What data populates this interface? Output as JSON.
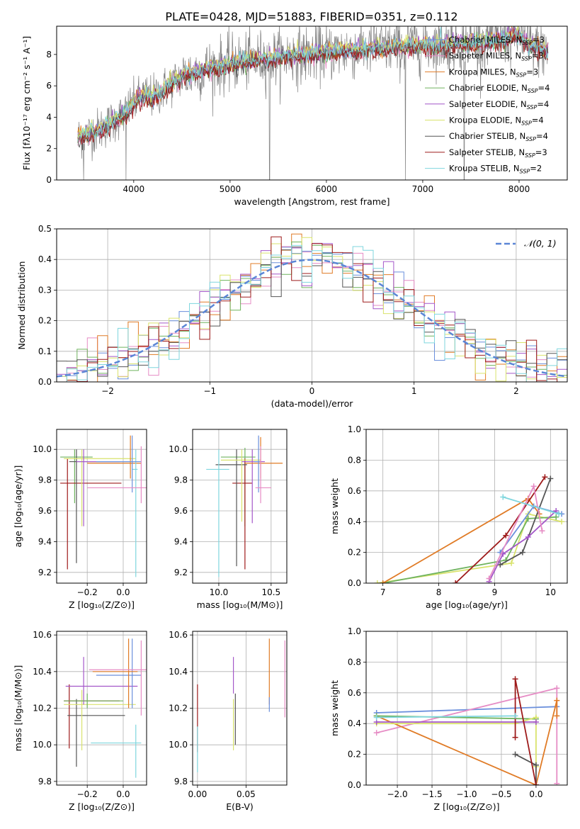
{
  "figure_title": "PLATE=0428, MJD=51883, FIBERID=0351, z=0.112",
  "colors": {
    "chabrier_miles": "#6a8fdc",
    "salpeter_miles": "#e68cc5",
    "kroupa_miles": "#e07b26",
    "chabrier_elodie": "#6fb35f",
    "salpeter_elodie": "#a457c9",
    "kroupa_elodie": "#d9e36c",
    "chabrier_stelib": "#555555",
    "salpeter_stelib": "#9e1b1b",
    "kroupa_stelib": "#7fd6de",
    "data": "#808080"
  },
  "chart_data": [
    {
      "id": "spectrum",
      "type": "line",
      "xlabel": "wavelength [Angstrom, rest frame]",
      "ylabel": "Flux [fλ10⁻¹⁷ erg cm⁻² s⁻¹ A⁻¹]",
      "xlim": [
        3200,
        8500
      ],
      "ylim": [
        0,
        9.8
      ],
      "xticks": [
        "4000",
        "5000",
        "6000",
        "7000",
        "8000"
      ],
      "yticks": [
        "0",
        "2",
        "4",
        "6",
        "8"
      ],
      "grid": false,
      "legend_position": "top-right",
      "legend": [
        "Chabrier MILES, N_SSP=3",
        "Salpeter MILES, N_SSP=3",
        "Kroupa MILES, N_SSP=3",
        "Chabrier ELODIE, N_SSP=4",
        "Salpeter ELODIE, N_SSP=4",
        "Kroupa ELODIE, N_SSP=4",
        "Chabrier STELIB, N_SSP=4",
        "Salpeter STELIB, N_SSP=3",
        "Kroupa STELIB, N_SSP=2"
      ],
      "continuum": {
        "x": [
          3420,
          3500,
          3600,
          3700,
          3800,
          3900,
          4000,
          4100,
          4200,
          4300,
          4400,
          4500,
          4700,
          4900,
          5100,
          5300,
          5500,
          5800,
          6100,
          6400,
          6700,
          7000,
          7300,
          7600,
          7800,
          8000,
          8100,
          8300
        ],
        "y": [
          2.7,
          2.9,
          3.1,
          3.4,
          3.8,
          4.2,
          4.9,
          5.4,
          5.3,
          5.7,
          6.2,
          6.6,
          7.0,
          7.3,
          7.5,
          7.7,
          7.85,
          8.0,
          8.2,
          8.35,
          8.5,
          8.6,
          8.7,
          8.8,
          8.9,
          9.3,
          8.6,
          8.2
        ]
      },
      "model_offsets": [
        0.0,
        -0.1,
        0.05,
        -0.05,
        0.1,
        0.12,
        -0.15,
        -0.25,
        0.02
      ],
      "data_noise_amplitude": 1.0,
      "dips": [
        {
          "x": 3480,
          "to": 0.0
        },
        {
          "x": 3920,
          "to": 0.0
        },
        {
          "x": 5410,
          "to": 0.0
        },
        {
          "x": 6820,
          "to": 0.0
        },
        {
          "x": 7430,
          "to": 0.0
        }
      ]
    },
    {
      "id": "residuals",
      "type": "step",
      "xlabel": "(data-model)/error",
      "ylabel": "Normed distribution",
      "xlim": [
        -2.5,
        2.5
      ],
      "ylim": [
        0,
        0.5
      ],
      "xticks": [
        "−2",
        "−1",
        "0",
        "1",
        "2"
      ],
      "yticks": [
        "0.0",
        "0.1",
        "0.2",
        "0.3",
        "0.4",
        "0.5"
      ],
      "grid": true,
      "legend_position": "top-right",
      "legend": [
        "𝒩(0, 1)"
      ],
      "gaussian": {
        "mean": 0,
        "sigma": 1
      },
      "bin_width": 0.1,
      "model_noise": 0.04
    },
    {
      "id": "age_vs_Z",
      "type": "errorbar",
      "xlabel": "Z [log₁₀(Z/Z⊙)]",
      "ylabel": "age  [log₁₀(age/yr)]",
      "xlim": [
        -0.37,
        0.13
      ],
      "ylim": [
        9.13,
        10.13
      ],
      "xticks": [
        "−0.2",
        "0.0"
      ],
      "xtick_values": [
        -0.2,
        0.0
      ],
      "ytick_values": [
        9.2,
        9.4,
        9.6,
        9.8,
        10.0
      ],
      "yticks": [
        "9.2",
        "9.4",
        "9.6",
        "9.8",
        "10.0"
      ],
      "grid": true,
      "points": [
        {
          "x": -0.27,
          "y": 9.95,
          "xerr": [
            0.08,
            0.1
          ],
          "yerr": [
            0.3,
            0.05
          ],
          "c": "chabrier_elodie"
        },
        {
          "x": -0.31,
          "y": 9.78,
          "xerr": [
            0.04,
            0.3
          ],
          "yerr": [
            0.56,
            0.16
          ],
          "c": "salpeter_stelib"
        },
        {
          "x": -0.26,
          "y": 9.92,
          "xerr": [
            0.04,
            0.3
          ],
          "yerr": [
            0.66,
            0.08
          ],
          "c": "chabrier_stelib"
        },
        {
          "x": -0.23,
          "y": 9.94,
          "xerr": [
            0.1,
            0.3
          ],
          "yerr": [
            0.44,
            0.06
          ],
          "c": "kroupa_elodie"
        },
        {
          "x": -0.22,
          "y": 9.92,
          "xerr": [
            0.04,
            0.2
          ],
          "yerr": [
            0.42,
            0.08
          ],
          "c": "salpeter_elodie"
        },
        {
          "x": 0.04,
          "y": 9.91,
          "xerr": [
            0.24,
            0.06
          ],
          "yerr": [
            0.1,
            0.18
          ],
          "c": "kroupa_miles"
        },
        {
          "x": 0.07,
          "y": 9.87,
          "xerr": [
            0.02,
            0.01
          ],
          "yerr": [
            0.7,
            0.13
          ],
          "c": "kroupa_stelib"
        },
        {
          "x": 0.05,
          "y": 9.92,
          "xerr": [
            0.2,
            0.05
          ],
          "yerr": [
            0.2,
            0.17
          ],
          "c": "chabrier_miles"
        },
        {
          "x": 0.1,
          "y": 9.75,
          "xerr": [
            0.3,
            0.03
          ],
          "yerr": [
            0.1,
            0.27
          ],
          "c": "salpeter_miles"
        }
      ]
    },
    {
      "id": "age_vs_mass",
      "type": "errorbar",
      "xlabel": "mass [log₁₀(M/M⊙)]",
      "ylabel": "",
      "xlim": [
        9.75,
        10.65
      ],
      "ylim": [
        9.13,
        10.13
      ],
      "xticks": [
        "10.0",
        "10.5"
      ],
      "xtick_values": [
        10.0,
        10.5
      ],
      "ytick_values": [
        9.2,
        9.4,
        9.6,
        9.8,
        10.0
      ],
      "yticks": [
        "9.2",
        "9.4",
        "9.6",
        "9.8",
        "10.0"
      ],
      "grid": true,
      "points": [
        {
          "x": 10.25,
          "y": 9.95,
          "xerr": [
            0.23,
            0.1
          ],
          "yerr": [
            0.45,
            0.06
          ],
          "c": "chabrier_elodie"
        },
        {
          "x": 10.25,
          "y": 9.78,
          "xerr": [
            0.12,
            0.07
          ],
          "yerr": [
            0.56,
            0.16
          ],
          "c": "salpeter_stelib"
        },
        {
          "x": 10.17,
          "y": 9.9,
          "xerr": [
            0.2,
            0.1
          ],
          "yerr": [
            0.66,
            0.1
          ],
          "c": "chabrier_stelib"
        },
        {
          "x": 10.22,
          "y": 9.93,
          "xerr": [
            0.2,
            0.18
          ],
          "yerr": [
            0.4,
            0.07
          ],
          "c": "kroupa_elodie"
        },
        {
          "x": 10.32,
          "y": 9.92,
          "xerr": [
            0.1,
            0.12
          ],
          "yerr": [
            0.4,
            0.08
          ],
          "c": "salpeter_elodie"
        },
        {
          "x": 10.4,
          "y": 9.91,
          "xerr": [
            0.15,
            0.21
          ],
          "yerr": [
            0.1,
            0.17
          ],
          "c": "kroupa_miles"
        },
        {
          "x": 10.0,
          "y": 9.87,
          "xerr": [
            0.12,
            0.1
          ],
          "yerr": [
            0.7,
            0.13
          ],
          "c": "kroupa_stelib"
        },
        {
          "x": 10.38,
          "y": 9.92,
          "xerr": [
            0.04,
            0.01
          ],
          "yerr": [
            0.2,
            0.17
          ],
          "c": "chabrier_miles"
        },
        {
          "x": 10.4,
          "y": 9.75,
          "xerr": [
            0.05,
            0.1
          ],
          "yerr": [
            0.1,
            0.27
          ],
          "c": "salpeter_miles"
        }
      ]
    },
    {
      "id": "weight_vs_age",
      "type": "line",
      "xlabel": "age  [log₁₀(age/yr)]",
      "ylabel": "mass weight",
      "xlim": [
        6.7,
        10.3
      ],
      "ylim": [
        0,
        1.0
      ],
      "xticks": [
        "7",
        "8",
        "9",
        "10"
      ],
      "xtick_values": [
        7,
        8,
        9,
        10
      ],
      "ytick_values": [
        0,
        0.2,
        0.4,
        0.6,
        0.8,
        1.0
      ],
      "yticks": [
        "0.0",
        "0.2",
        "0.4",
        "0.6",
        "0.8",
        "1.0"
      ],
      "grid": true,
      "series": [
        {
          "c": "kroupa_elodie",
          "x": [
            6.9,
            9.3,
            9.6,
            10.2
          ],
          "y": [
            0.0,
            0.13,
            0.45,
            0.4
          ]
        },
        {
          "c": "chabrier_elodie",
          "x": [
            7.0,
            9.2,
            9.6,
            10.1
          ],
          "y": [
            0.0,
            0.15,
            0.42,
            0.43
          ]
        },
        {
          "c": "kroupa_miles",
          "x": [
            7.0,
            9.6,
            9.8
          ],
          "y": [
            0.0,
            0.55,
            0.45
          ]
        },
        {
          "c": "chabrier_stelib",
          "x": [
            9.1,
            9.5,
            10.0
          ],
          "y": [
            0.12,
            0.2,
            0.68
          ]
        },
        {
          "c": "salpeter_stelib",
          "x": [
            8.3,
            9.2,
            9.9
          ],
          "y": [
            0.0,
            0.31,
            0.69
          ]
        },
        {
          "c": "chabrier_miles",
          "x": [
            9.1,
            9.7,
            10.2
          ],
          "y": [
            0.2,
            0.5,
            0.45
          ]
        },
        {
          "c": "salpeter_elodie",
          "x": [
            8.9,
            9.15,
            9.6,
            10.1
          ],
          "y": [
            0.01,
            0.19,
            0.3,
            0.47
          ]
        },
        {
          "c": "salpeter_miles",
          "x": [
            8.9,
            9.7,
            9.85
          ],
          "y": [
            0.03,
            0.63,
            0.34
          ]
        },
        {
          "c": "kroupa_stelib",
          "x": [
            9.15,
            10.15
          ],
          "y": [
            0.56,
            0.45
          ]
        }
      ]
    },
    {
      "id": "mass_vs_Z",
      "type": "errorbar",
      "xlabel": "Z [log₁₀(Z/Z⊙)]",
      "ylabel": "mass [log₁₀(M/M⊙)]",
      "xlim": [
        -0.37,
        0.13
      ],
      "ylim": [
        9.78,
        10.62
      ],
      "xticks": [
        "−0.2",
        "0.0"
      ],
      "xtick_values": [
        -0.2,
        0.0
      ],
      "ytick_values": [
        9.8,
        10.0,
        10.2,
        10.4,
        10.6
      ],
      "yticks": [
        "9.8",
        "10.0",
        "10.2",
        "10.4",
        "10.6"
      ],
      "grid": true,
      "points": [
        {
          "x": -0.3,
          "y": 10.24,
          "xerr": [
            0.03,
            0.28
          ],
          "yerr": [
            0.26,
            0.09
          ],
          "c": "salpeter_stelib"
        },
        {
          "x": -0.26,
          "y": 10.16,
          "xerr": [
            0.05,
            0.27
          ],
          "yerr": [
            0.28,
            0.09
          ],
          "c": "chabrier_stelib"
        },
        {
          "x": -0.23,
          "y": 10.22,
          "xerr": [
            0.1,
            0.3
          ],
          "yerr": [
            0.25,
            0.08
          ],
          "c": "kroupa_elodie"
        },
        {
          "x": -0.22,
          "y": 10.32,
          "xerr": [
            0.1,
            0.3
          ],
          "yerr": [
            0.1,
            0.16
          ],
          "c": "salpeter_elodie"
        },
        {
          "x": -0.2,
          "y": 10.24,
          "xerr": [
            0.13,
            0.2
          ],
          "yerr": [
            0.04,
            0.04
          ],
          "c": "chabrier_elodie"
        },
        {
          "x": 0.05,
          "y": 10.38,
          "xerr": [
            0.2,
            0.05
          ],
          "yerr": [
            0.18,
            0.2
          ],
          "c": "chabrier_miles"
        },
        {
          "x": 0.07,
          "y": 10.01,
          "xerr": [
            0.25,
            0.03
          ],
          "yerr": [
            0.19,
            0.1
          ],
          "c": "kroupa_stelib"
        },
        {
          "x": 0.03,
          "y": 10.4,
          "xerr": [
            0.2,
            0.05
          ],
          "yerr": [
            0.2,
            0.18
          ],
          "c": "kroupa_miles"
        },
        {
          "x": 0.1,
          "y": 10.41,
          "xerr": [
            0.29,
            0.03
          ],
          "yerr": [
            0.25,
            0.16
          ],
          "c": "salpeter_miles"
        }
      ]
    },
    {
      "id": "mass_vs_ebv",
      "type": "errorbar",
      "xlabel": "E(B-V)",
      "ylabel": "",
      "xlim": [
        -0.005,
        0.092
      ],
      "ylim": [
        9.78,
        10.62
      ],
      "xticks": [
        "0.00",
        "0.05"
      ],
      "xtick_values": [
        0.0,
        0.05
      ],
      "ytick_values": [
        9.8,
        10.0,
        10.2,
        10.4,
        10.6
      ],
      "yticks": [
        "9.8",
        "10.0",
        "10.2",
        "10.4",
        "10.6"
      ],
      "grid": true,
      "points": [
        {
          "x": 0.0,
          "y": 10.18,
          "xerr": [
            0,
            0
          ],
          "yerr": [
            0.22,
            0.15
          ],
          "c": "salpeter_stelib"
        },
        {
          "x": 0.0,
          "y": 10.0,
          "xerr": [
            0,
            0
          ],
          "yerr": [
            0.15,
            0.1
          ],
          "c": "kroupa_stelib"
        },
        {
          "x": 0.037,
          "y": 10.38,
          "xerr": [
            0,
            0
          ],
          "yerr": [
            0.1,
            0.1
          ],
          "c": "salpeter_elodie"
        },
        {
          "x": 0.037,
          "y": 10.15,
          "xerr": [
            0,
            0
          ],
          "yerr": [
            0.18,
            0.1
          ],
          "c": "kroupa_elodie"
        },
        {
          "x": 0.039,
          "y": 10.18,
          "xerr": [
            0,
            0
          ],
          "yerr": [
            0.18,
            0.1
          ],
          "c": "chabrier_stelib"
        },
        {
          "x": 0.074,
          "y": 10.4,
          "xerr": [
            0,
            0
          ],
          "yerr": [
            0.18,
            0.18
          ],
          "c": "kroupa_miles"
        },
        {
          "x": 0.074,
          "y": 10.22,
          "xerr": [
            0,
            0
          ],
          "yerr": [
            0.04,
            0.04
          ],
          "c": "chabrier_miles"
        },
        {
          "x": 0.09,
          "y": 10.35,
          "xerr": [
            0,
            0
          ],
          "yerr": [
            0.2,
            0.22
          ],
          "c": "salpeter_miles"
        }
      ]
    },
    {
      "id": "weight_vs_Z",
      "type": "line",
      "xlabel": "Z [log₁₀(Z/Z⊙)]",
      "ylabel": "mass weight",
      "xlim": [
        -2.45,
        0.45
      ],
      "ylim": [
        0,
        1.0
      ],
      "xticks": [
        "−2.0",
        "−1.5",
        "−1.0",
        "−0.5",
        "0.0"
      ],
      "xtick_values": [
        -2.0,
        -1.5,
        -1.0,
        -0.5,
        0.0
      ],
      "ytick_values": [
        0,
        0.2,
        0.4,
        0.6,
        0.8,
        1.0
      ],
      "yticks": [
        "0.0",
        "0.2",
        "0.4",
        "0.6",
        "0.8",
        "1.0"
      ],
      "grid": true,
      "series": [
        {
          "c": "chabrier_miles",
          "x": [
            -2.3,
            0.3
          ],
          "y": [
            0.47,
            0.51
          ]
        },
        {
          "c": "salpeter_miles",
          "x": [
            -2.3,
            0.3,
            0.3
          ],
          "y": [
            0.34,
            0.63,
            0.01
          ]
        },
        {
          "c": "kroupa_miles",
          "x": [
            -2.3,
            0.0,
            0.3,
            0.3
          ],
          "y": [
            0.45,
            0.0,
            0.55,
            0.45
          ]
        },
        {
          "c": "chabrier_elodie",
          "x": [
            -2.3,
            0.0
          ],
          "y": [
            0.45,
            0.43
          ]
        },
        {
          "c": "kroupa_elodie",
          "x": [
            -2.3,
            -0.3,
            0.0,
            0.0
          ],
          "y": [
            0.4,
            0.4,
            0.44,
            0.12
          ]
        },
        {
          "c": "salpeter_elodie",
          "x": [
            -2.3,
            0.0
          ],
          "y": [
            0.41,
            0.41
          ]
        },
        {
          "c": "chabrier_stelib",
          "x": [
            -0.3,
            0.0,
            0.0
          ],
          "y": [
            0.2,
            0.13,
            0.0
          ]
        },
        {
          "c": "salpeter_stelib",
          "x": [
            -0.3,
            -0.3,
            0.0
          ],
          "y": [
            0.31,
            0.69,
            0.0
          ]
        },
        {
          "c": "kroupa_stelib",
          "x": [
            -2.3,
            -0.3
          ],
          "y": [
            0.44,
            0.45
          ]
        }
      ]
    }
  ]
}
